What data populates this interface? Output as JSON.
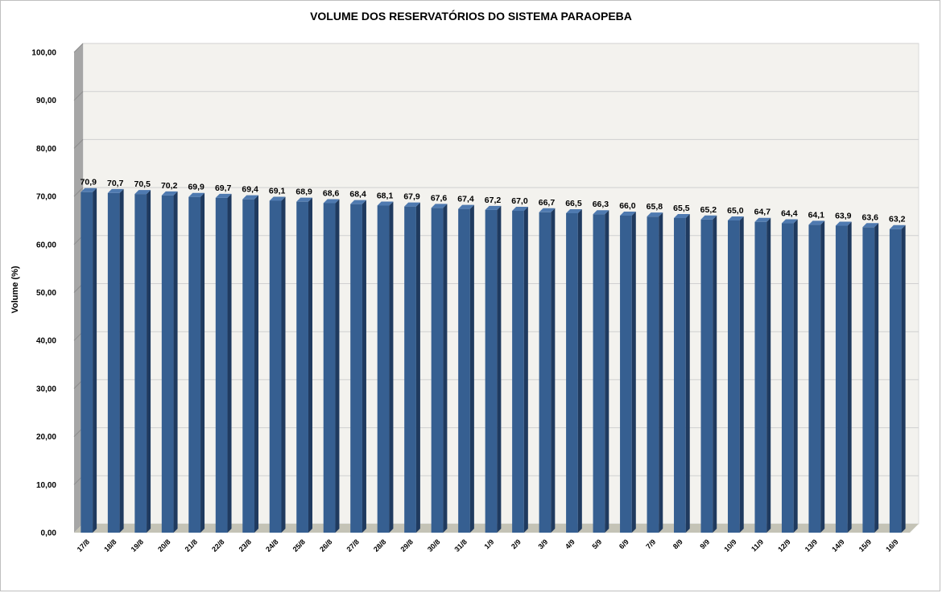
{
  "chart_data": {
    "type": "bar",
    "title": "VOLUME DOS RESERVATÓRIOS DO SISTEMA PARAOPEBA",
    "xlabel": "",
    "ylabel": "Volume (%)",
    "ylim": [
      0,
      100
    ],
    "yticks": [
      "0,00",
      "10,00",
      "20,00",
      "30,00",
      "40,00",
      "50,00",
      "60,00",
      "70,00",
      "80,00",
      "90,00",
      "100,00"
    ],
    "grid": true,
    "legend": "none",
    "categories": [
      "17/8",
      "18/8",
      "19/8",
      "20/8",
      "21/8",
      "22/8",
      "23/8",
      "24/8",
      "25/8",
      "26/8",
      "27/8",
      "28/8",
      "29/8",
      "30/8",
      "31/8",
      "1/9",
      "2/9",
      "3/9",
      "4/9",
      "5/9",
      "6/9",
      "7/9",
      "8/9",
      "9/9",
      "10/9",
      "11/9",
      "12/9",
      "13/9",
      "14/9",
      "15/9",
      "16/9"
    ],
    "values": [
      70.9,
      70.7,
      70.5,
      70.2,
      69.9,
      69.7,
      69.4,
      69.1,
      68.9,
      68.6,
      68.4,
      68.1,
      67.9,
      67.6,
      67.4,
      67.2,
      67.0,
      66.7,
      66.5,
      66.3,
      66.0,
      65.8,
      65.5,
      65.2,
      65.0,
      64.7,
      64.4,
      64.1,
      63.9,
      63.6,
      63.2
    ],
    "data_labels": [
      "70,9",
      "70,7",
      "70,5",
      "70,2",
      "69,9",
      "69,7",
      "69,4",
      "69,1",
      "68,9",
      "68,6",
      "68,4",
      "68,1",
      "67,9",
      "67,6",
      "67,4",
      "67,2",
      "67,0",
      "66,7",
      "66,5",
      "66,3",
      "66,0",
      "65,8",
      "65,5",
      "65,2",
      "65,0",
      "64,7",
      "64,4",
      "64,1",
      "63,9",
      "63,6",
      "63,2"
    ],
    "colors": {
      "bar_front": "#365f91",
      "bar_side": "#1f3a5f",
      "bar_top": "#4f7ab0",
      "plot_back": "#f3f2ee",
      "floor": "#c4c3b6",
      "left_wall": "#a6a6a6",
      "gridline": "#d0d0d0"
    }
  }
}
